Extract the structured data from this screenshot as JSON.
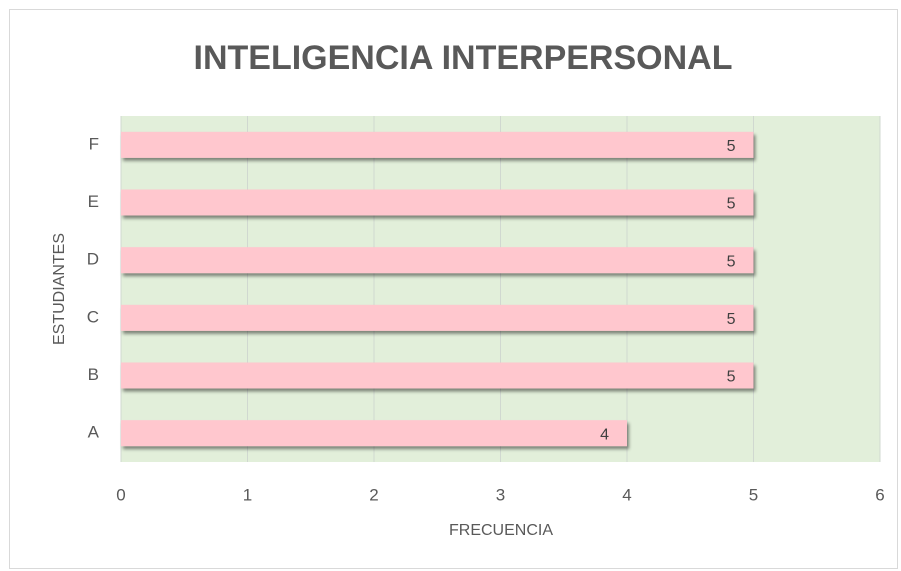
{
  "chart_data": {
    "type": "bar",
    "orientation": "horizontal",
    "title": "INTELIGENCIA INTERPERSONAL",
    "x_label": "FRECUENCIA",
    "y_label": "ESTUDIANTES",
    "categories": [
      "A",
      "B",
      "C",
      "D",
      "E",
      "F"
    ],
    "values": [
      4,
      5,
      5,
      5,
      5,
      5
    ],
    "color": "#ffc7ce",
    "plot_background": "#e2efda",
    "xlim": [
      0,
      6
    ],
    "xticks": [
      0,
      1,
      2,
      3,
      4,
      5,
      6
    ],
    "grid": true
  }
}
